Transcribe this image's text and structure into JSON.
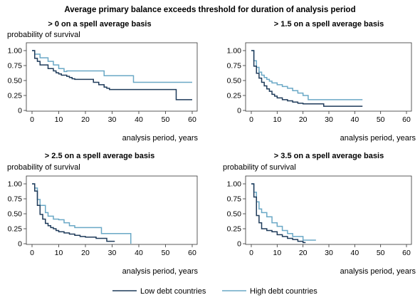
{
  "title": "Average primary balance exceeds threshold for duration of analysis period",
  "colors": {
    "low": "#1f3b5a",
    "high": "#6aa8c6",
    "axis": "#333333"
  },
  "legend": {
    "low_label": "Low debt countries",
    "high_label": "High debt countries"
  },
  "chart_data": [
    {
      "type": "line",
      "subtype": "step",
      "title": "> 0 on a spell average basis",
      "ylabel": "probability of survival",
      "xlabel": "analysis period, years",
      "xlim": [
        0,
        60
      ],
      "ylim": [
        0,
        1
      ],
      "xticks": [
        "0",
        "10",
        "20",
        "30",
        "40",
        "50",
        "60"
      ],
      "yticks": [
        "0",
        "0.25",
        "0.50",
        "0.75",
        "1.00"
      ],
      "series": [
        {
          "name": "Low debt countries",
          "key": "low",
          "x": [
            0,
            1,
            2,
            3,
            6,
            8,
            9,
            10,
            11,
            13,
            14,
            15,
            16,
            23,
            25,
            27,
            28,
            29,
            54,
            60
          ],
          "y": [
            1,
            0.87,
            0.82,
            0.76,
            0.7,
            0.66,
            0.63,
            0.61,
            0.59,
            0.57,
            0.55,
            0.53,
            0.52,
            0.47,
            0.43,
            0.39,
            0.37,
            0.35,
            0.18,
            0.18
          ]
        },
        {
          "name": "High debt countries",
          "key": "high",
          "x": [
            0,
            1,
            3,
            6,
            8,
            10,
            12,
            13,
            27,
            38,
            60
          ],
          "y": [
            1,
            0.94,
            0.88,
            0.82,
            0.76,
            0.7,
            0.65,
            0.66,
            0.58,
            0.47,
            0.47
          ]
        }
      ]
    },
    {
      "type": "line",
      "subtype": "step",
      "title": "> 1.5 on a spell average basis",
      "ylabel": "",
      "xlabel": "analysis period, years",
      "xlim": [
        0,
        60
      ],
      "ylim": [
        0,
        1
      ],
      "xticks": [
        "0",
        "10",
        "20",
        "30",
        "40",
        "50",
        "60"
      ],
      "yticks": [
        "0",
        "0.25",
        "0.50",
        "0.75",
        "1.00"
      ],
      "series": [
        {
          "name": "Low debt countries",
          "key": "low",
          "x": [
            0,
            1,
            2,
            3,
            4,
            5,
            6,
            7,
            8,
            9,
            10,
            12,
            14,
            16,
            18,
            20,
            28,
            43
          ],
          "y": [
            1,
            0.74,
            0.62,
            0.54,
            0.47,
            0.41,
            0.36,
            0.32,
            0.27,
            0.24,
            0.21,
            0.18,
            0.16,
            0.14,
            0.12,
            0.11,
            0.07,
            0.07
          ]
        },
        {
          "name": "High debt countries",
          "key": "high",
          "x": [
            0,
            1,
            2,
            3,
            4,
            5,
            6,
            7,
            8,
            10,
            12,
            14,
            16,
            18,
            20,
            22,
            43
          ],
          "y": [
            1,
            0.83,
            0.72,
            0.64,
            0.59,
            0.55,
            0.52,
            0.49,
            0.46,
            0.43,
            0.4,
            0.37,
            0.33,
            0.29,
            0.25,
            0.18,
            0.18
          ]
        }
      ]
    },
    {
      "type": "line",
      "subtype": "step",
      "title": "> 2.5 on a spell average basis",
      "ylabel": "probability of survival",
      "xlabel": "analysis period, years",
      "xlim": [
        0,
        60
      ],
      "ylim": [
        0,
        1
      ],
      "xticks": [
        "0",
        "10",
        "20",
        "30",
        "40",
        "50",
        "60"
      ],
      "yticks": [
        "0",
        "0.25",
        "0.50",
        "0.75",
        "1.00"
      ],
      "series": [
        {
          "name": "Low debt countries",
          "key": "low",
          "x": [
            0,
            1,
            2,
            3,
            4,
            5,
            6,
            7,
            8,
            9,
            10,
            12,
            14,
            16,
            18,
            20,
            24,
            28,
            31
          ],
          "y": [
            1,
            0.88,
            0.64,
            0.49,
            0.41,
            0.34,
            0.3,
            0.27,
            0.25,
            0.22,
            0.2,
            0.18,
            0.16,
            0.14,
            0.12,
            0.11,
            0.09,
            0.04,
            0.04
          ]
        },
        {
          "name": "High debt countries",
          "key": "high",
          "x": [
            0,
            1,
            2,
            3,
            5,
            6,
            8,
            10,
            12,
            14,
            16,
            19,
            26,
            37
          ],
          "y": [
            1,
            0.93,
            0.74,
            0.64,
            0.52,
            0.46,
            0.41,
            0.4,
            0.35,
            0.3,
            0.27,
            0.27,
            0.17,
            0.0
          ]
        }
      ]
    },
    {
      "type": "line",
      "subtype": "step",
      "title": "> 3.5 on a spell average basis",
      "ylabel": "probability of survival",
      "xlabel": "analysis period, years",
      "xlim": [
        0,
        60
      ],
      "ylim": [
        0,
        1
      ],
      "xticks": [
        "0",
        "10",
        "20",
        "30",
        "40",
        "50",
        "60"
      ],
      "yticks": [
        "0",
        "0.25",
        "0.50",
        "0.75",
        "1.00"
      ],
      "series": [
        {
          "name": "Low debt countries",
          "key": "low",
          "x": [
            0,
            1,
            2,
            3,
            4,
            6,
            8,
            10,
            12,
            14,
            16,
            18,
            20,
            21
          ],
          "y": [
            1,
            0.78,
            0.47,
            0.35,
            0.25,
            0.22,
            0.2,
            0.15,
            0.12,
            0.09,
            0.07,
            0.04,
            0.02,
            0.02
          ]
        },
        {
          "name": "High debt countries",
          "key": "high",
          "x": [
            0,
            1,
            2,
            3,
            4,
            6,
            8,
            10,
            12,
            14,
            16,
            20,
            23,
            25
          ],
          "y": [
            1,
            0.86,
            0.7,
            0.58,
            0.52,
            0.45,
            0.35,
            0.29,
            0.22,
            0.17,
            0.12,
            0.06,
            0.06,
            0.06
          ]
        }
      ]
    }
  ]
}
